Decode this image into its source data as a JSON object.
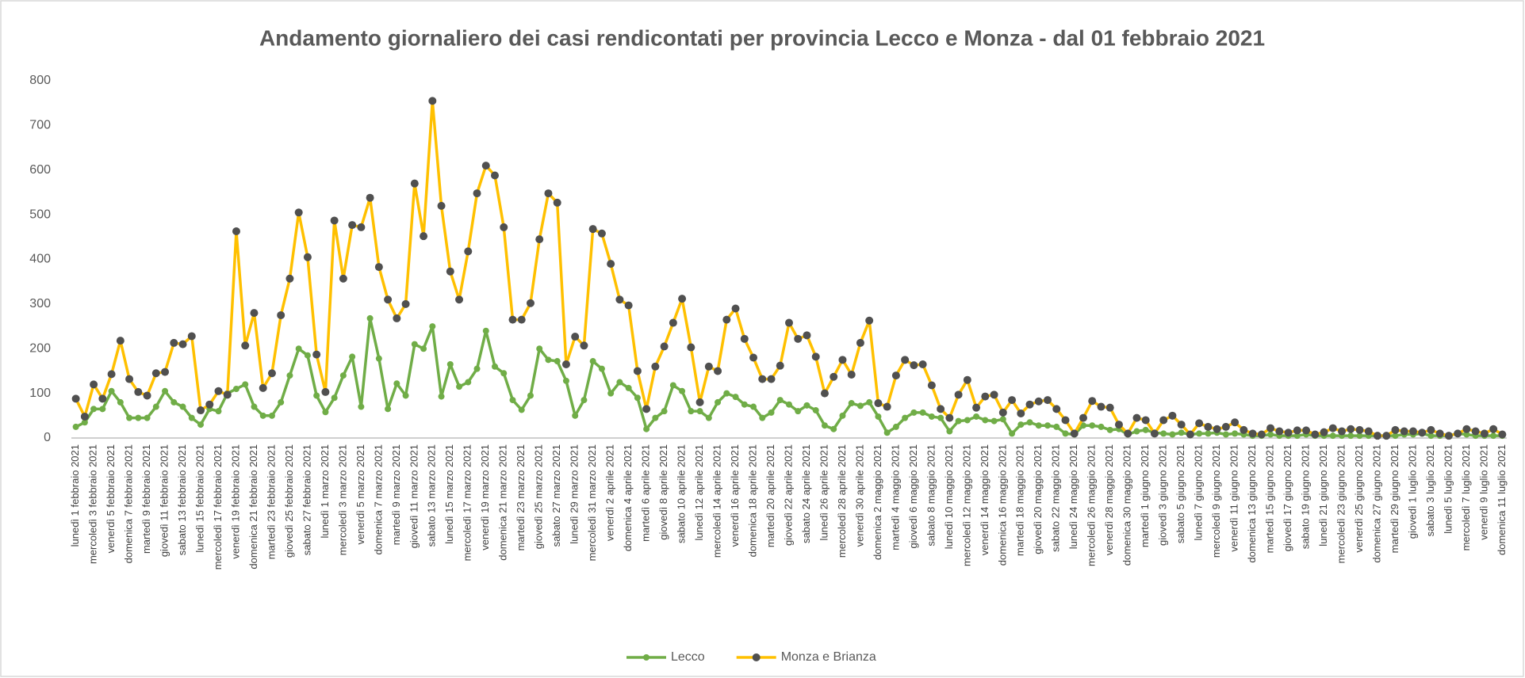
{
  "chart_data": {
    "type": "line",
    "title": "Andamento giornaliero dei casi rendicontati per provincia Lecco e Monza - dal 01 febbraio 2021",
    "categories": [
      "lunedì 1 febbraio 2021",
      null,
      "mercoledì 3 febbraio 2021",
      null,
      "venerdì 5 febbraio 2021",
      null,
      "domenica 7 febbraio 2021",
      null,
      "martedì 9 febbraio 2021",
      null,
      "giovedì 11 febbraio 2021",
      null,
      "sabato 13 febbraio 2021",
      null,
      "lunedì 15 febbraio 2021",
      null,
      "mercoledì 17 febbraio 2021",
      null,
      "venerdì 19 febbraio 2021",
      null,
      "domenica 21 febbraio 2021",
      null,
      "martedì 23 febbraio 2021",
      null,
      "giovedì 25 febbraio 2021",
      null,
      "sabato 27 febbraio 2021",
      null,
      "lunedì 1 marzo 2021",
      null,
      "mercoledì 3 marzo 2021",
      null,
      "venerdì 5 marzo 2021",
      null,
      "domenica 7 marzo 2021",
      null,
      "martedì 9 marzo 2021",
      null,
      "giovedì 11 marzo 2021",
      null,
      "sabato 13 marzo 2021",
      null,
      "lunedì 15 marzo 2021",
      null,
      "mercoledì 17 marzo 2021",
      null,
      "venerdì 19 marzo 2021",
      null,
      "domenica 21 marzo 2021",
      null,
      "martedì 23 marzo 2021",
      null,
      "giovedì 25 marzo 2021",
      null,
      "sabato 27 marzo 2021",
      null,
      "lunedì 29 marzo 2021",
      null,
      "mercoledì 31 marzo 2021",
      null,
      "venerdì 2 aprile 2021",
      null,
      "domenica 4 aprile 2021",
      null,
      "martedì 6 aprile 2021",
      null,
      "giovedì 8 aprile 2021",
      null,
      "sabato 10 aprile 2021",
      null,
      "lunedì 12 aprile 2021",
      null,
      "mercoledì 14 aprile 2021",
      null,
      "venerdì 16 aprile 2021",
      null,
      "domenica 18 aprile 2021",
      null,
      "martedì 20 aprile 2021",
      null,
      "giovedì 22 aprile 2021",
      null,
      "sabato 24 aprile 2021",
      null,
      "lunedì 26 aprile 2021",
      null,
      "mercoledì 28 aprile 2021",
      null,
      "venerdì 30 aprile 2021",
      null,
      "domenica 2 maggio 2021",
      null,
      "martedì 4 maggio 2021",
      null,
      "giovedì 6 maggio 2021",
      null,
      "sabato 8 maggio 2021",
      null,
      "lunedì 10 maggio 2021",
      null,
      "mercoledì 12 maggio 2021",
      null,
      "venerdì 14 maggio 2021",
      null,
      "domenica 16 maggio 2021",
      null,
      "martedì 18 maggio 2021",
      null,
      "giovedì 20 maggio 2021",
      null,
      "sabato 22 maggio 2021",
      null,
      "lunedì 24 maggio 2021",
      null,
      "mercoledì 26 maggio 2021",
      null,
      "venerdì 28 maggio 2021",
      null,
      "domenica 30 maggio 2021",
      null,
      "martedì 1 giugno 2021",
      null,
      "giovedì 3 giugno 2021",
      null,
      "sabato 5 giugno 2021",
      null,
      "lunedì 7 giugno 2021",
      null,
      "mercoledì 9 giugno 2021",
      null,
      "venerdì 11 giugno 2021",
      null,
      "domenica 13 giugno 2021",
      null,
      "martedì 15 giugno 2021",
      null,
      "giovedì 17 giugno 2021",
      null,
      "sabato 19 giugno 2021",
      null,
      "lunedì 21 giugno 2021",
      null,
      "mercoledì 23 giugno 2021",
      null,
      "venerdì 25 giugno 2021",
      null,
      "domenica 27 giugno 2021",
      null,
      "martedì 29 giugno 2021",
      null,
      "giovedì 1 luglio 2021",
      null,
      "sabato 3 luglio 2021",
      null,
      "lunedì 5 luglio 2021",
      null,
      "mercoledì 7 luglio 2021",
      null,
      "venerdì 9 luglio 2021",
      null,
      "domenica 11 luglio 2021"
    ],
    "series": [
      {
        "name": "Lecco",
        "color": "#70ad47",
        "marker_color": "#70ad47",
        "values": [
          25,
          35,
          65,
          65,
          105,
          80,
          45,
          45,
          45,
          70,
          105,
          80,
          70,
          45,
          30,
          65,
          60,
          100,
          110,
          120,
          70,
          50,
          50,
          80,
          140,
          200,
          185,
          95,
          58,
          90,
          140,
          182,
          70,
          268,
          178,
          65,
          122,
          95,
          210,
          200,
          250,
          93,
          165,
          115,
          125,
          155,
          240,
          160,
          145,
          85,
          63,
          95,
          200,
          175,
          172,
          128,
          50,
          85,
          172,
          155,
          100,
          125,
          112,
          90,
          20,
          45,
          60,
          118,
          105,
          60,
          60,
          45,
          80,
          100,
          92,
          75,
          70,
          45,
          57,
          85,
          75,
          60,
          73,
          62,
          28,
          20,
          50,
          78,
          72,
          80,
          48,
          12,
          25,
          45,
          57,
          57,
          48,
          45,
          15,
          38,
          40,
          48,
          40,
          38,
          42,
          10,
          30,
          35,
          28,
          28,
          25,
          10,
          8,
          28,
          28,
          25,
          18,
          20,
          8,
          15,
          18,
          12,
          10,
          8,
          12,
          8,
          10,
          10,
          12,
          8,
          10,
          8,
          5,
          5,
          8,
          5,
          5,
          5,
          8,
          5,
          5,
          5,
          5,
          5,
          5,
          5,
          5,
          5,
          5,
          8,
          8,
          10,
          5,
          5,
          5,
          10,
          8,
          5,
          5,
          5,
          5
        ]
      },
      {
        "name": "Monza e Brianza",
        "color": "#ffc000",
        "marker_color": "#505050",
        "values": [
          88,
          48,
          120,
          88,
          143,
          218,
          132,
          103,
          95,
          145,
          148,
          213,
          210,
          228,
          62,
          75,
          105,
          97,
          463,
          207,
          280,
          112,
          145,
          275,
          357,
          505,
          405,
          187,
          103,
          487,
          357,
          477,
          472,
          538,
          383,
          310,
          268,
          300,
          570,
          452,
          755,
          520,
          373,
          310,
          418,
          548,
          610,
          588,
          472,
          265,
          265,
          302,
          445,
          548,
          527,
          165,
          227,
          207,
          468,
          458,
          390,
          310,
          297,
          150,
          65,
          160,
          205,
          258,
          312,
          203,
          80,
          160,
          150,
          265,
          290,
          222,
          180,
          132,
          132,
          162,
          258,
          222,
          230,
          182,
          100,
          137,
          175,
          142,
          213,
          263,
          78,
          70,
          140,
          175,
          163,
          165,
          118,
          65,
          45,
          97,
          130,
          68,
          93,
          97,
          57,
          85,
          55,
          75,
          82,
          85,
          65,
          40,
          10,
          45,
          83,
          70,
          68,
          30,
          10,
          45,
          40,
          10,
          40,
          50,
          30,
          8,
          33,
          25,
          20,
          25,
          35,
          18,
          10,
          8,
          22,
          15,
          12,
          17,
          17,
          8,
          13,
          22,
          15,
          20,
          18,
          15,
          5,
          5,
          18,
          15,
          15,
          12,
          18,
          10,
          5,
          10,
          20,
          15,
          10,
          20,
          8
        ]
      }
    ],
    "ylim": [
      0,
      800
    ],
    "yticks": [
      0,
      100,
      200,
      300,
      400,
      500,
      600,
      700,
      800
    ],
    "grid": false,
    "legend": "bottom"
  }
}
